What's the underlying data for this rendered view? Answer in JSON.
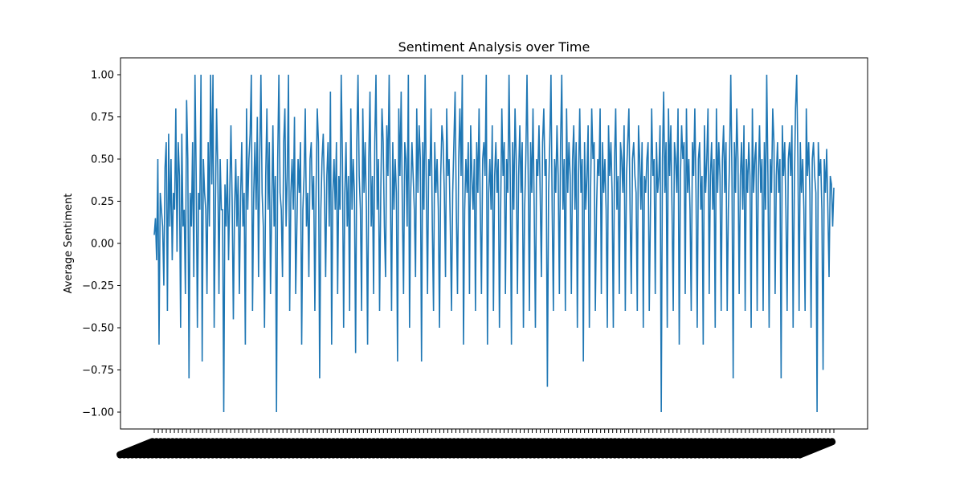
{
  "chart_data": {
    "type": "line",
    "title": "Sentiment Analysis over Time",
    "xlabel": "",
    "ylabel": "Average Sentiment",
    "ylim": [
      -1.1,
      1.1
    ],
    "yticks": [
      -1.0,
      -0.75,
      -0.5,
      -0.25,
      0.0,
      0.25,
      0.5,
      0.75,
      1.0
    ],
    "ytick_labels": [
      "−1.00",
      "−0.75",
      "−0.50",
      "−0.25",
      "0.00",
      "0.25",
      "0.50",
      "0.75",
      "1.00"
    ],
    "grid": false,
    "legend": "none",
    "x_tick_labels_rotated": 45,
    "x_tick_labels_illegible": true,
    "series": [
      {
        "color": "#1f77b4",
        "values": [
          0.05,
          0.15,
          -0.1,
          0.5,
          -0.6,
          0.3,
          0.2,
          0.1,
          -0.25,
          0.45,
          0.6,
          -0.4,
          0.65,
          0.1,
          0.5,
          -0.1,
          0.3,
          0.2,
          0.8,
          -0.05,
          0.6,
          0.4,
          -0.5,
          0.65,
          0.1,
          0.2,
          -0.3,
          0.85,
          0.5,
          -0.8,
          0.3,
          0.1,
          0.6,
          -0.2,
          1.0,
          0.4,
          -0.5,
          0.3,
          0.2,
          1.0,
          -0.7,
          0.5,
          0.3,
          0.2,
          -0.3,
          0.6,
          0.1,
          1.0,
          0.35,
          1.0,
          -0.5,
          0.2,
          0.8,
          0.45,
          -0.3,
          0.5,
          0.2,
          0.2,
          -1.0,
          0.35,
          0.1,
          0.5,
          -0.1,
          0.3,
          0.7,
          0.25,
          -0.45,
          0.2,
          0.5,
          0.1,
          0.4,
          -0.3,
          0.25,
          0.6,
          0.1,
          0.3,
          -0.6,
          0.8,
          0.2,
          0.5,
          0.65,
          1.0,
          -0.4,
          0.3,
          0.6,
          0.2,
          0.75,
          -0.2,
          0.5,
          1.0,
          0.3,
          0.1,
          -0.5,
          0.4,
          0.8,
          0.2,
          0.6,
          -0.3,
          0.2,
          0.7,
          0.1,
          0.4,
          -1.0,
          0.5,
          1.0,
          0.3,
          0.2,
          -0.2,
          0.6,
          0.8,
          0.1,
          0.4,
          1.0,
          -0.4,
          0.3,
          0.5,
          0.2,
          0.75,
          -0.3,
          0.1,
          0.5,
          0.3,
          0.6,
          -0.6,
          0.2,
          0.4,
          0.8,
          0.1,
          0.3,
          -0.2,
          0.5,
          0.6,
          0.2,
          0.4,
          -0.4,
          0.3,
          0.8,
          0.6,
          -0.8,
          0.2,
          0.5,
          0.65,
          0.3,
          -0.2,
          0.4,
          0.6,
          0.1,
          0.9,
          -0.6,
          0.3,
          0.5,
          0.2,
          0.6,
          -0.3,
          0.4,
          0.2,
          1.0,
          0.5,
          -0.5,
          0.3,
          0.6,
          0.1,
          0.4,
          -0.4,
          0.8,
          0.2,
          0.5,
          0.3,
          -0.65,
          0.6,
          1.0,
          0.4,
          0.2,
          -0.4,
          0.8,
          0.3,
          0.6,
          0.2,
          -0.6,
          0.5,
          0.9,
          0.1,
          0.4,
          -0.3,
          0.6,
          1.0,
          0.2,
          0.5,
          -0.4,
          0.3,
          0.8,
          0.6,
          0.1,
          -0.2,
          0.7,
          0.4,
          1.0,
          0.3,
          -0.4,
          0.6,
          0.2,
          0.5,
          0.3,
          -0.7,
          0.8,
          0.4,
          0.9,
          0.2,
          -0.3,
          0.6,
          0.5,
          0.1,
          1.0,
          -0.5,
          0.3,
          0.6,
          0.4,
          0.2,
          -0.2,
          0.8,
          0.3,
          0.7,
          0.5,
          -0.7,
          0.6,
          0.2,
          1.0,
          0.3,
          -0.3,
          0.5,
          0.4,
          0.8,
          0.1,
          -0.4,
          0.6,
          0.3,
          0.5,
          0.2,
          -0.5,
          0.4,
          0.7,
          0.6,
          0.3,
          -0.2,
          0.8,
          0.4,
          0.5,
          0.1,
          -0.4,
          0.3,
          0.6,
          0.9,
          0.2,
          -0.3,
          0.5,
          0.8,
          0.4,
          1.0,
          -0.6,
          0.2,
          0.5,
          0.3,
          0.6,
          -0.3,
          0.7,
          0.4,
          0.2,
          0.5,
          -0.4,
          0.6,
          0.3,
          0.8,
          0.2,
          -0.3,
          0.5,
          0.6,
          0.4,
          1.0,
          -0.6,
          0.3,
          0.5,
          0.2,
          0.7,
          -0.4,
          0.4,
          0.6,
          0.3,
          0.5,
          -0.5,
          0.2,
          0.8,
          0.4,
          0.6,
          -0.3,
          0.5,
          0.3,
          1.0,
          0.4,
          -0.6,
          0.6,
          0.2,
          0.8,
          0.5,
          -0.3,
          0.4,
          0.7,
          0.3,
          0.6,
          -0.5,
          0.2,
          0.5,
          1.0,
          0.4,
          -0.4,
          0.6,
          0.3,
          0.8,
          0.2,
          -0.5,
          0.5,
          0.4,
          0.7,
          0.3,
          -0.2,
          0.6,
          0.8,
          0.4,
          0.5,
          -0.85,
          0.3,
          0.6,
          1.0,
          0.2,
          -0.4,
          0.5,
          0.3,
          0.7,
          0.4,
          -0.3,
          0.6,
          1.0,
          0.2,
          0.5,
          -0.4,
          0.8,
          0.3,
          0.6,
          0.4,
          -0.3,
          0.5,
          0.7,
          0.2,
          0.6,
          -0.5,
          0.4,
          0.8,
          0.3,
          0.5,
          -0.7,
          0.6,
          0.2,
          0.4,
          0.7,
          -0.5,
          0.3,
          0.8,
          0.5,
          0.6,
          -0.4,
          0.2,
          0.5,
          0.4,
          0.8,
          -0.3,
          0.6,
          0.3,
          0.5,
          0.2,
          -0.5,
          0.7,
          0.4,
          0.6,
          0.3,
          -0.5,
          0.5,
          0.8,
          0.2,
          0.4,
          -0.3,
          0.6,
          0.5,
          0.3,
          0.7,
          -0.4,
          0.4,
          0.6,
          0.8,
          0.2,
          -0.3,
          0.5,
          0.6,
          0.4,
          0.3,
          -0.4,
          0.7,
          0.5,
          0.2,
          0.6,
          -0.5,
          0.4,
          0.3,
          0.5,
          0.6,
          -0.4,
          0.2,
          0.8,
          0.4,
          0.5,
          -0.3,
          0.6,
          0.3,
          0.4,
          0.7,
          -1.0,
          0.5,
          0.9,
          0.3,
          0.6,
          -0.5,
          0.8,
          0.4,
          0.7,
          0.2,
          -0.4,
          0.6,
          0.5,
          0.3,
          0.8,
          -0.6,
          0.4,
          0.7,
          0.5,
          0.6,
          -0.3,
          0.8,
          0.3,
          0.5,
          0.2,
          -0.4,
          0.6,
          0.4,
          0.8,
          0.3,
          -0.5,
          0.5,
          0.6,
          0.2,
          0.4,
          -0.6,
          0.7,
          0.3,
          0.5,
          0.8,
          -0.3,
          0.4,
          0.6,
          0.2,
          0.5,
          -0.5,
          0.8,
          0.3,
          0.6,
          0.4,
          -0.4,
          0.5,
          0.7,
          0.3,
          0.6,
          -0.4,
          0.2,
          0.5,
          1.0,
          0.4,
          -0.8,
          0.6,
          0.3,
          0.8,
          0.5,
          -0.3,
          0.4,
          0.6,
          0.2,
          0.7,
          -0.4,
          0.5,
          0.3,
          0.6,
          0.4,
          -0.5,
          0.8,
          0.3,
          0.5,
          0.6,
          -0.4,
          0.4,
          0.7,
          0.3,
          0.5,
          -0.4,
          0.6,
          0.2,
          1.0,
          0.4,
          -0.5,
          0.5,
          0.3,
          0.8,
          0.6,
          -0.3,
          0.4,
          0.6,
          0.3,
          0.5,
          -0.8,
          0.7,
          0.4,
          0.6,
          0.2,
          -0.4,
          0.5,
          0.6,
          0.4,
          0.7,
          -0.5,
          0.3,
          0.8,
          1.0,
          0.5,
          -0.4,
          0.6,
          0.3,
          0.5,
          0.2,
          -0.4,
          0.8,
          0.4,
          0.6,
          0.3,
          -0.5,
          0.5,
          0.6,
          0.4,
          0.3,
          -1.0,
          0.6,
          0.4,
          0.5,
          0.2,
          -0.75,
          0.5,
          0.3,
          0.56,
          0.2,
          -0.2,
          0.4,
          0.35,
          0.1,
          0.33
        ]
      }
    ]
  }
}
